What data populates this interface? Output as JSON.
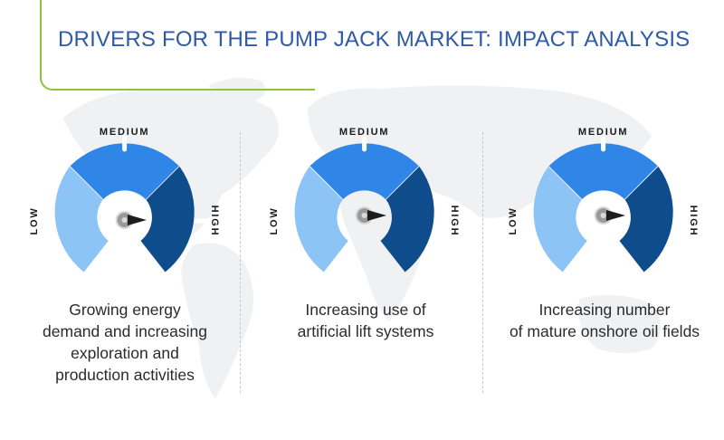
{
  "title": "DRIVERS FOR THE PUMP JACK MARKET: IMPACT ANALYSIS",
  "gauge_labels": {
    "low": "LOW",
    "medium": "MEDIUM",
    "high": "HIGH"
  },
  "colors": {
    "title": "#2e5aa8",
    "accent_line": "#8cc43f",
    "low": "#8cc4f5",
    "medium": "#2f86e6",
    "high": "#0e4c8c",
    "needle": "#1d1d1d",
    "map": "#f0f1f3"
  },
  "drivers": [
    {
      "lines": [
        "Growing energy",
        "demand and increasing",
        "exploration and",
        "production activities"
      ],
      "impact": "High"
    },
    {
      "lines": [
        "Increasing use of",
        "artificial lift systems"
      ],
      "impact": "High"
    },
    {
      "lines": [
        "Increasing number",
        "of mature onshore oil fields"
      ],
      "impact": "High"
    }
  ]
}
